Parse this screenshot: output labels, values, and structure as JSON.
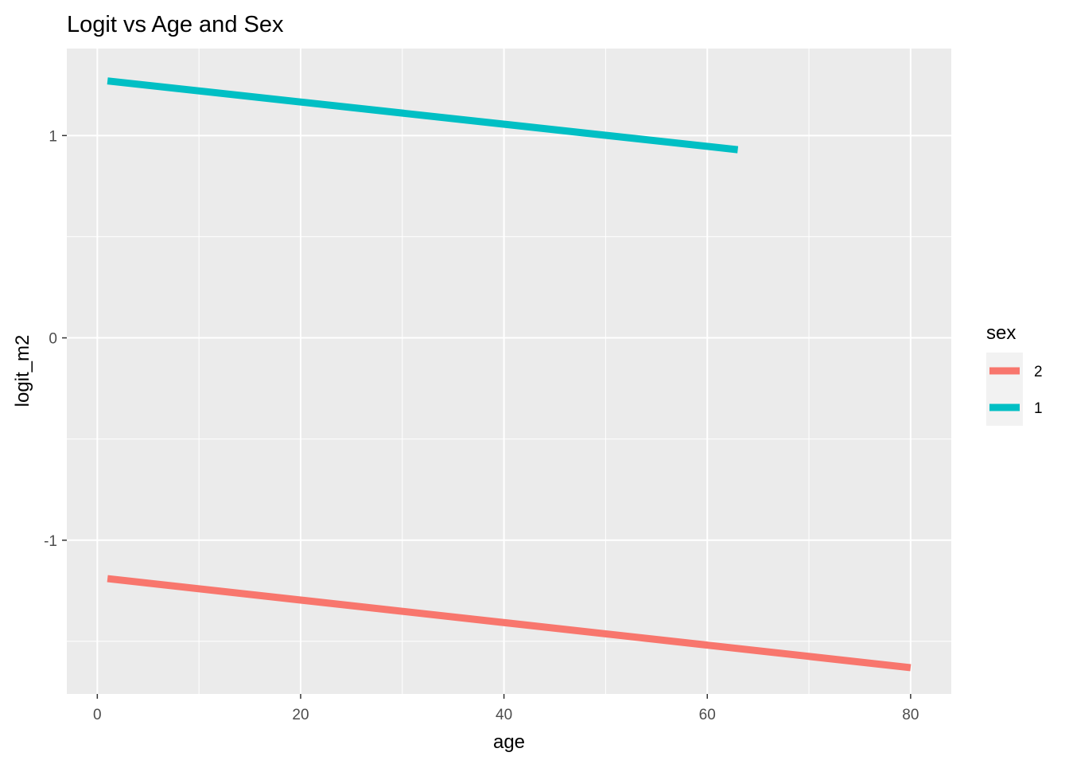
{
  "chart_data": {
    "type": "line",
    "title": "Logit vs Age and Sex",
    "xlabel": "age",
    "ylabel": "logit_m2",
    "xlim": [
      -3.0,
      84.0
    ],
    "ylim": [
      -1.76,
      1.43
    ],
    "x_ticks": [
      0,
      20,
      40,
      60,
      80
    ],
    "y_ticks": [
      -1,
      0,
      1
    ],
    "x_tick_labels": [
      "0",
      "20",
      "40",
      "60",
      "80"
    ],
    "y_tick_labels": [
      "-1",
      "0",
      "1"
    ],
    "grid": true,
    "legend": {
      "title": "sex",
      "placement": "right",
      "entries": [
        "2",
        "1"
      ]
    },
    "series": [
      {
        "name": "2",
        "color": "#F8766D",
        "x": [
          1,
          80
        ],
        "y": [
          -1.19,
          -1.63
        ]
      },
      {
        "name": "1",
        "color": "#00BFC4",
        "x": [
          1,
          63
        ],
        "y": [
          1.27,
          0.93
        ]
      }
    ]
  }
}
